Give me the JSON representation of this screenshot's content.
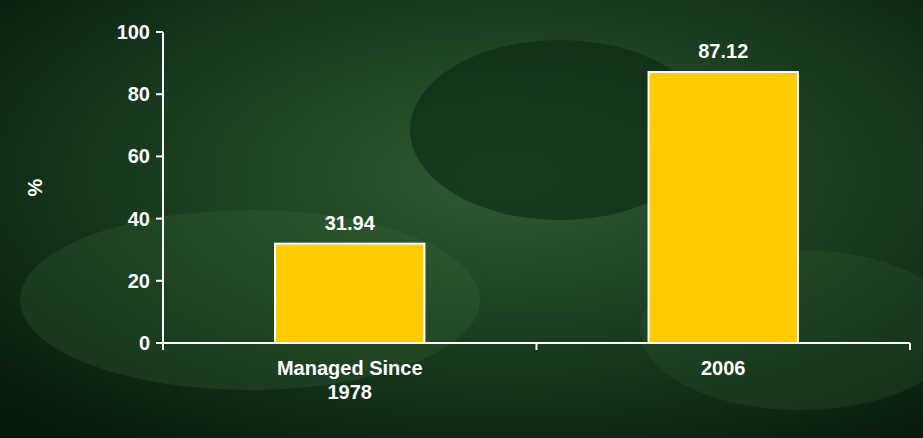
{
  "chart_data": {
    "type": "bar",
    "y_label": "%",
    "categories": [
      "Managed Since 1978",
      "2006"
    ],
    "values": [
      31.94,
      87.12
    ],
    "color": "#FFCC00",
    "ylim": [
      0,
      100
    ],
    "yticks": [
      0,
      20,
      40,
      60,
      80,
      100
    ],
    "grid": false,
    "data_labels": true
  }
}
